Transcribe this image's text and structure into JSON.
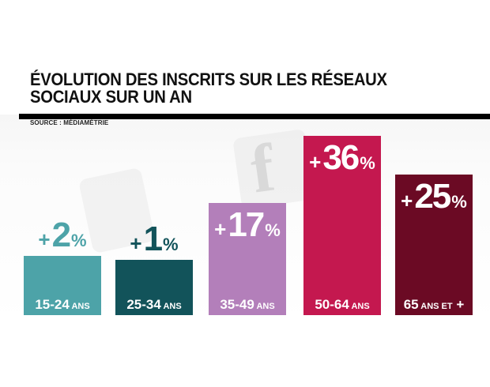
{
  "title": "ÉVOLUTION DES INSCRITS SUR LES RÉSEAUX SOCIAUX SUR UN AN",
  "title_lines": [
    "ÉVOLUTION DES INSCRITS SUR LES RÉSEAUX",
    "SOCIAUX SUR UN AN"
  ],
  "source": "SOURCE : MÉDIAMÉTRIE",
  "chart_data": {
    "type": "bar",
    "title": "ÉVOLUTION DES INSCRITS SUR LES RÉSEAUX SOCIAUX SUR UN AN",
    "unit": "%",
    "categories": [
      "15-24 ANS",
      "25-34 ANS",
      "35-49 ANS",
      "50-64 ANS",
      "65 ANS ET +"
    ],
    "values": [
      2,
      1,
      17,
      36,
      25
    ],
    "value_labels": [
      "+2%",
      "+1%",
      "+17%",
      "+36%",
      "+25%"
    ],
    "colors": [
      "#4da3a8",
      "#12535a",
      "#b37fba",
      "#c4184f",
      "#6b0a24"
    ],
    "ylim": [
      0,
      36
    ],
    "grid": false,
    "legend": "none"
  }
}
